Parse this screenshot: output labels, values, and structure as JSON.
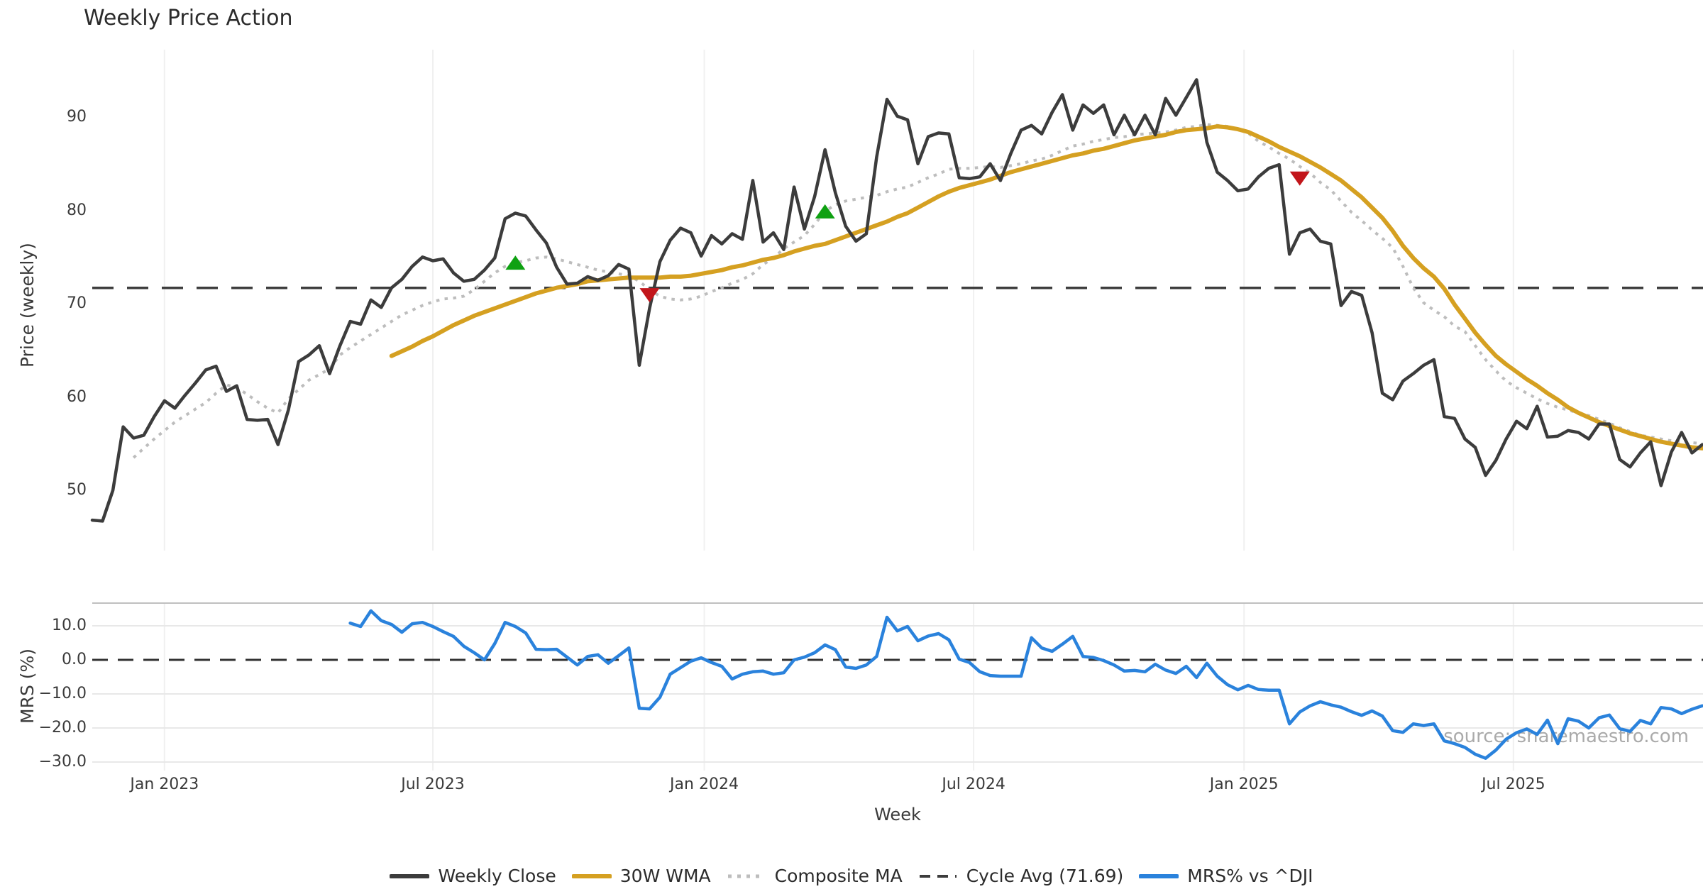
{
  "title": "Weekly Price Action",
  "watermark": "source: sharemaestro.com",
  "colors": {
    "price": "#3c3c3c",
    "wma": "#d5a021",
    "composite": "#bdbdbd",
    "cycle": "#3d3d3d",
    "mrs": "#2a82dc",
    "buy": "#0fa112",
    "sell": "#c2161b",
    "grid": "#f0f0f0",
    "grid_h": "#e8e8e8",
    "panel_border": "#bfbfbf",
    "zero_line": "#333333",
    "text": "#3a3a3a",
    "title_text": "#2b2b2b",
    "watermark_text": "#8a8a8a"
  },
  "axes": {
    "price_label": "Price (weekly)",
    "mrs_label": "MRS (%)",
    "x_label": "Week"
  },
  "legend": {
    "items": [
      {
        "label": "Weekly Close",
        "color": "price",
        "width": 6,
        "dash": ""
      },
      {
        "label": "30W WMA",
        "color": "wma",
        "width": 6,
        "dash": ""
      },
      {
        "label": "Composite MA",
        "color": "composite",
        "width": 5,
        "dash": "5 8"
      },
      {
        "label": "Cycle Avg (71.69)",
        "color": "cycle",
        "width": 4,
        "dash": "15 10"
      },
      {
        "label": "MRS% vs ^DJI",
        "color": "mrs",
        "width": 6,
        "dash": ""
      }
    ]
  },
  "chart_data": {
    "type": "line",
    "title": "Weekly Price Action",
    "x_unit": "weekly, Nov 2022 - Nov 2025",
    "x_range_weeks": [
      0,
      156
    ],
    "grid": "vertical-light-top-panel, horizontal-light-bottom-panel",
    "legend_position": "bottom-center",
    "x_ticks": [
      {
        "label": "Jan 2023",
        "week": 7.0
      },
      {
        "label": "Jul 2023",
        "week": 33.0
      },
      {
        "label": "Jan 2024",
        "week": 59.3
      },
      {
        "label": "Jul 2024",
        "week": 85.4
      },
      {
        "label": "Jan 2025",
        "week": 111.6
      },
      {
        "label": "Jul 2025",
        "week": 137.7
      }
    ],
    "panels": [
      {
        "name": "price",
        "ylabel": "Price (weekly)",
        "ylim": [
          44,
          95.5
        ],
        "yticks": [
          90,
          80,
          70,
          60,
          50
        ],
        "ytick_labels": [
          "90",
          "80",
          "70",
          "60",
          "50"
        ],
        "cycle_avg": 71.69,
        "series": [
          {
            "name": "Weekly Close",
            "start_week": 0,
            "values": [
              46.8,
              46.7,
              50.0,
              56.8,
              55.6,
              55.9,
              57.9,
              59.6,
              58.8,
              60.2,
              61.5,
              62.9,
              63.3,
              60.6,
              61.2,
              57.6,
              57.5,
              57.6,
              54.9,
              58.6,
              63.8,
              64.5,
              65.5,
              62.5,
              65.5,
              68.1,
              67.8,
              70.4,
              69.6,
              71.7,
              72.6,
              74.0,
              75.0,
              74.6,
              74.8,
              73.3,
              72.4,
              72.6,
              73.6,
              74.9,
              79.1,
              79.7,
              79.4,
              77.9,
              76.5,
              73.9,
              72.1,
              72.2,
              72.9,
              72.5,
              73.0,
              74.2,
              73.7,
              63.4,
              69.5,
              74.5,
              76.8,
              78.1,
              77.6,
              75.1,
              77.3,
              76.4,
              77.5,
              76.9,
              83.2,
              76.6,
              77.6,
              75.8,
              82.5,
              78.0,
              81.5,
              86.5,
              81.9,
              78.3,
              76.7,
              77.5,
              85.7,
              91.9,
              90.1,
              89.7,
              85.0,
              87.9,
              88.3,
              88.2,
              83.5,
              83.4,
              83.6,
              85.0,
              83.2,
              86.1,
              88.6,
              89.1,
              88.2,
              90.5,
              92.4,
              88.6,
              91.3,
              90.4,
              91.3,
              88.1,
              90.2,
              88.1,
              90.2,
              88.1,
              92.0,
              90.2,
              92.1,
              94.0,
              87.3,
              84.1,
              83.2,
              82.1,
              82.3,
              83.6,
              84.5,
              84.9,
              75.3,
              77.6,
              78.0,
              76.7,
              76.4,
              69.8,
              71.3,
              70.9,
              66.9,
              60.4,
              59.7,
              61.7,
              62.5,
              63.4,
              64.0,
              57.9,
              57.7,
              55.5,
              54.6,
              51.6,
              53.2,
              55.5,
              57.4,
              56.6,
              59.0,
              55.7,
              55.8,
              56.4,
              56.2,
              55.5,
              57.1,
              57.1,
              53.3,
              52.5,
              54.0,
              55.2,
              50.5,
              54.1,
              56.2,
              54.0,
              54.9
            ]
          },
          {
            "name": "30W WMA",
            "start_week": 29,
            "values": [
              64.4,
              64.9,
              65.4,
              66.0,
              66.5,
              67.1,
              67.7,
              68.2,
              68.7,
              69.1,
              69.5,
              69.9,
              70.3,
              70.7,
              71.1,
              71.4,
              71.7,
              71.9,
              72.1,
              72.4,
              72.5,
              72.6,
              72.7,
              72.8,
              72.8,
              72.8,
              72.8,
              72.9,
              72.9,
              73.0,
              73.2,
              73.4,
              73.6,
              73.9,
              74.1,
              74.4,
              74.7,
              74.9,
              75.2,
              75.6,
              75.9,
              76.2,
              76.4,
              76.8,
              77.2,
              77.6,
              78.0,
              78.4,
              78.8,
              79.3,
              79.7,
              80.3,
              80.9,
              81.5,
              82.0,
              82.4,
              82.7,
              83.0,
              83.3,
              83.7,
              84.1,
              84.4,
              84.7,
              85.0,
              85.3,
              85.6,
              85.9,
              86.1,
              86.4,
              86.6,
              86.9,
              87.2,
              87.5,
              87.7,
              87.9,
              88.1,
              88.4,
              88.6,
              88.7,
              88.8,
              89.0,
              88.9,
              88.7,
              88.4,
              87.9,
              87.4,
              86.8,
              86.3,
              85.8,
              85.2,
              84.6,
              83.9,
              83.2,
              82.3,
              81.4,
              80.3,
              79.2,
              77.8,
              76.2,
              74.9,
              73.8,
              72.9,
              71.6,
              69.9,
              68.4,
              66.9,
              65.6,
              64.4,
              63.5,
              62.7,
              61.9,
              61.2,
              60.4,
              59.7,
              58.9,
              58.3,
              57.8,
              57.3,
              56.9,
              56.5,
              56.1,
              55.8,
              55.5,
              55.2,
              55.0,
              54.8,
              54.6,
              54.5
            ]
          },
          {
            "name": "Composite MA",
            "start_week": 4,
            "values": [
              53.5,
              54.5,
              55.5,
              56.4,
              57.3,
              58.0,
              58.7,
              59.4,
              60.4,
              61.3,
              61.0,
              60.3,
              59.5,
              58.8,
              58.3,
              59.8,
              60.8,
              61.8,
              62.4,
              63.0,
              64.5,
              65.3,
              66.0,
              66.7,
              67.4,
              68.1,
              68.8,
              69.3,
              69.8,
              70.2,
              70.5,
              70.6,
              70.8,
              71.5,
              72.4,
              73.3,
              74.0,
              74.4,
              74.6,
              74.9,
              75.0,
              74.8,
              74.5,
              74.2,
              73.9,
              73.6,
              73.4,
              73.2,
              73.0,
              72.4,
              71.5,
              70.8,
              70.5,
              70.4,
              70.5,
              70.8,
              71.3,
              71.7,
              72.2,
              72.6,
              73.2,
              74.2,
              74.9,
              75.9,
              76.6,
              77.3,
              78.5,
              79.9,
              80.6,
              81.0,
              81.2,
              81.4,
              81.6,
              82.0,
              82.3,
              82.5,
              83.0,
              83.5,
              83.9,
              84.4,
              84.5,
              84.5,
              84.6,
              84.7,
              84.6,
              84.8,
              85.0,
              85.3,
              85.5,
              85.9,
              86.4,
              86.9,
              87.1,
              87.4,
              87.6,
              87.8,
              87.9,
              88.1,
              88.2,
              88.3,
              88.4,
              88.6,
              88.9,
              89.0,
              89.2,
              89.1,
              89.0,
              88.7,
              88.3,
              87.4,
              86.8,
              86.1,
              85.5,
              84.7,
              84.0,
              83.0,
              82.2,
              81.0,
              79.8,
              78.9,
              77.9,
              77.0,
              76.0,
              74.0,
              71.7,
              70.1,
              69.3,
              68.6,
              67.6,
              67.0,
              65.5,
              64.0,
              62.8,
              61.7,
              61.0,
              60.4,
              59.8,
              59.3,
              58.9,
              58.6,
              58.3,
              58.0,
              57.6,
              57.2,
              56.7,
              56.3,
              55.9,
              55.7,
              55.5,
              55.3,
              55.2,
              55.1,
              55.0
            ]
          },
          {
            "name": "Cycle Avg",
            "type": "hline",
            "value": 71.69
          }
        ],
        "markers": [
          {
            "week": 41,
            "value": 74.4,
            "kind": "buy"
          },
          {
            "week": 54,
            "value": 70.9,
            "kind": "sell"
          },
          {
            "week": 71,
            "value": 79.9,
            "kind": "buy"
          },
          {
            "week": 117,
            "value": 83.4,
            "kind": "sell"
          }
        ]
      },
      {
        "name": "mrs",
        "ylabel": "MRS (%)",
        "ylim": [
          -33,
          16.7
        ],
        "yticks": [
          10,
          0,
          -10,
          -20,
          -30
        ],
        "ytick_labels": [
          "10.0",
          "0.0",
          "−10.0",
          "−20.0",
          "−30.0"
        ],
        "zero_line": 0.0,
        "series": [
          {
            "name": "MRS% vs ^DJI",
            "start_week": 25,
            "values": [
              10.8,
              9.8,
              14.4,
              11.5,
              10.4,
              8.1,
              10.6,
              11.0,
              9.8,
              8.3,
              6.9,
              4.0,
              2.1,
              0.0,
              4.8,
              11.0,
              9.8,
              7.9,
              3.1,
              3.0,
              3.1,
              0.8,
              -1.5,
              1.0,
              1.5,
              -1.0,
              1.2,
              3.5,
              -14.2,
              -14.4,
              -11.0,
              -4.2,
              -2.3,
              -0.4,
              0.6,
              -0.8,
              -1.9,
              -5.6,
              -4.2,
              -3.5,
              -3.3,
              -4.2,
              -3.8,
              0.0,
              0.8,
              2.1,
              4.4,
              3.0,
              -2.1,
              -2.5,
              -1.5,
              1.0,
              12.5,
              8.5,
              9.8,
              5.6,
              7.0,
              7.7,
              5.9,
              0.2,
              -0.8,
              -3.5,
              -4.6,
              -4.8,
              -4.8,
              -4.8,
              6.5,
              3.5,
              2.5,
              4.6,
              6.9,
              1.0,
              0.7,
              -0.2,
              -1.5,
              -3.3,
              -3.1,
              -3.5,
              -1.3,
              -3.0,
              -4.0,
              -1.9,
              -5.2,
              -1.0,
              -4.8,
              -7.3,
              -8.8,
              -7.5,
              -8.7,
              -8.9,
              -8.9,
              -18.8,
              -15.3,
              -13.5,
              -12.3,
              -13.2,
              -13.9,
              -15.2,
              -16.3,
              -15.0,
              -16.5,
              -20.8,
              -21.3,
              -18.8,
              -19.3,
              -18.8,
              -23.8,
              -24.6,
              -25.7,
              -27.7,
              -28.9,
              -26.5,
              -23.3,
              -21.4,
              -20.3,
              -21.9,
              -17.7,
              -24.6,
              -17.3,
              -18.0,
              -20.0,
              -17.0,
              -16.2,
              -20.2,
              -21.0,
              -17.8,
              -18.8,
              -14.0,
              -14.4,
              -15.8,
              -14.5,
              -13.5
            ]
          },
          {
            "name": "Zero",
            "type": "hline",
            "value": 0
          }
        ]
      }
    ]
  }
}
